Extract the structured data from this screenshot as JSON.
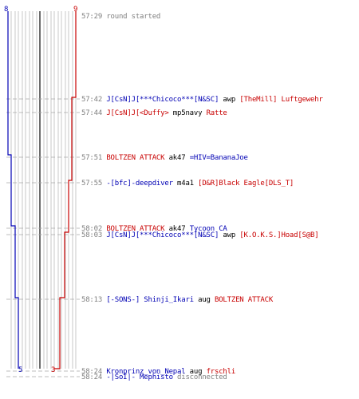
{
  "colors": {
    "blue_team": "#0000b4",
    "red_team": "#c80000",
    "gridline": "#b0b0b0",
    "center_line": "#606060",
    "guide_dash": "#a8a8a8",
    "time_text": "#808080"
  },
  "scores": {
    "blue_start": "8",
    "red_start": "9",
    "blue_end": "5",
    "red_end": "3"
  },
  "events": [
    {
      "time": "57:29",
      "parts": [
        {
          "text": "round started",
          "color": "gray"
        }
      ]
    },
    {
      "time": "57:42",
      "parts": [
        {
          "text": "J[CsN]J[***Chicoco***[N&SC]",
          "color": "blue"
        },
        {
          "text": " awp ",
          "color": "black"
        },
        {
          "text": "[TheMill] Luftgewehr",
          "color": "red"
        }
      ]
    },
    {
      "time": "57:44",
      "parts": [
        {
          "text": "J[CsN]J[<Duffy>",
          "color": "red"
        },
        {
          "text": " mp5navy ",
          "color": "black"
        },
        {
          "text": "Ratte",
          "color": "red"
        }
      ]
    },
    {
      "time": "57:51",
      "parts": [
        {
          "text": "BOLTZEN ATTACK",
          "color": "red"
        },
        {
          "text": " ak47 ",
          "color": "black"
        },
        {
          "text": "=HIV=BananaJoe",
          "color": "blue"
        }
      ]
    },
    {
      "time": "57:55",
      "parts": [
        {
          "text": "-[bfc]-deepdiver",
          "color": "blue"
        },
        {
          "text": " m4a1 ",
          "color": "black"
        },
        {
          "text": "[D&R]Black Eagle[DLS_T]",
          "color": "red"
        }
      ]
    },
    {
      "time": "58:02",
      "parts": [
        {
          "text": "BOLTZEN ATTACK",
          "color": "red"
        },
        {
          "text": " ak47 ",
          "color": "black"
        },
        {
          "text": "Tycoon CA",
          "color": "blue"
        }
      ]
    },
    {
      "time": "58:03",
      "parts": [
        {
          "text": "J[CsN]J[***Chicoco***[N&SC]",
          "color": "blue"
        },
        {
          "text": " awp ",
          "color": "black"
        },
        {
          "text": "[K.O.K.S.]Hoad[S@B]",
          "color": "red"
        }
      ]
    },
    {
      "time": "58:13",
      "parts": [
        {
          "text": "[-SONS-] Shinji_Ikari",
          "color": "blue"
        },
        {
          "text": " aug ",
          "color": "black"
        },
        {
          "text": "BOLTZEN ATTACK",
          "color": "red"
        }
      ]
    },
    {
      "time": "58:24",
      "parts": [
        {
          "text": "Kronprinz_von_Nepal",
          "color": "blue"
        },
        {
          "text": " aug ",
          "color": "black"
        },
        {
          "text": "frschli",
          "color": "red"
        }
      ]
    },
    {
      "time": "58:24",
      "parts": [
        {
          "text": "-|SoI|- Mephisto",
          "color": "blue"
        },
        {
          "text": " disconnected",
          "color": "gray"
        }
      ]
    }
  ]
}
